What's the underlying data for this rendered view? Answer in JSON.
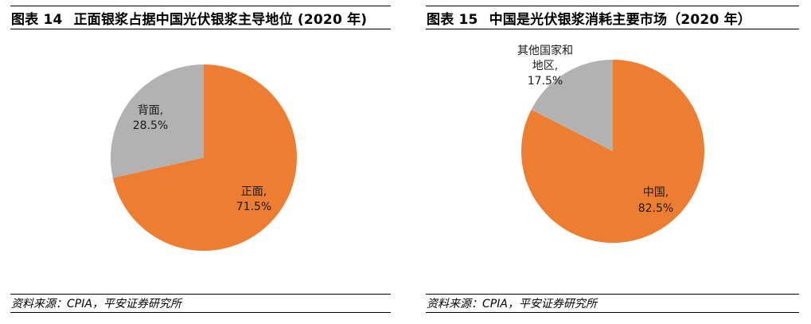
{
  "chart_data": [
    {
      "type": "pie",
      "figure_label": "图表 14",
      "title": "正面银浆占据中国光伏银浆主导地位 (2020 年)",
      "categories": [
        "正面",
        "背面"
      ],
      "values": [
        71.5,
        28.5
      ],
      "unit": "%",
      "colors": [
        "#ED7D31",
        "#B2B2B2"
      ],
      "data_labels": [
        "正面,\n71.5%",
        "背面,\n28.5%"
      ],
      "start_angle": "12 o'clock, clockwise",
      "legend": "none",
      "source": "资料来源：CPIA，平安证券研究所"
    },
    {
      "type": "pie",
      "figure_label": "图表 15",
      "title": "中国是光伏银浆消耗主要市场（2020 年）",
      "categories": [
        "中国",
        "其他国家和地区"
      ],
      "values": [
        82.5,
        17.5
      ],
      "unit": "%",
      "colors": [
        "#ED7D31",
        "#B2B2B2"
      ],
      "data_labels": [
        "中国,\n82.5%",
        "其他国家和地区,\n17.5%"
      ],
      "start_angle": "12 o'clock, clockwise",
      "legend": "none",
      "source": "资料来源：CPIA，平安证券研究所"
    }
  ],
  "left": {
    "fig_num": "图表 14",
    "title": "正面银浆占据中国光伏银浆主导地位 (2020 年)",
    "labels": {
      "front_name": "正面,",
      "front_pct": "71.5%",
      "back_name": "背面,",
      "back_pct": "28.5%"
    },
    "source": "资料来源：CPIA，平安证券研究所"
  },
  "right": {
    "fig_num": "图表 15",
    "title": "中国是光伏银浆消耗主要市场（2020 年）",
    "labels": {
      "china_name": "中国,",
      "china_pct": "82.5%",
      "other_line1": "其他国家和",
      "other_line2": "地区,",
      "other_pct": "17.5%"
    },
    "source": "资料来源：CPIA，平安证券研究所"
  }
}
